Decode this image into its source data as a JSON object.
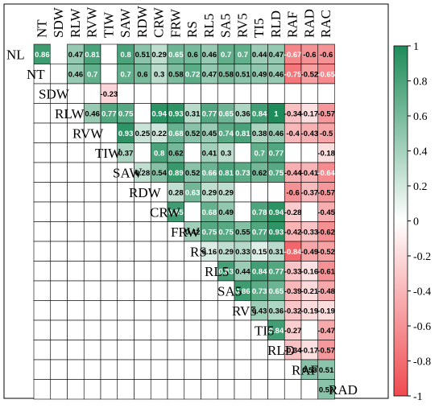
{
  "chart_data": {
    "type": "heatmap",
    "title": "",
    "column_labels": [
      "NT",
      "SDW",
      "RLW",
      "RVW",
      "TIW",
      "SAW",
      "RDW",
      "CRW",
      "FRW",
      "RS",
      "RL5",
      "SA5",
      "RV5",
      "TI5",
      "RLD",
      "RAF",
      "RAD",
      "RAC"
    ],
    "row_labels": [
      "NL",
      "NT",
      "SDW",
      "RLW",
      "RVW",
      "TIW",
      "SAW",
      "RDW",
      "CRW",
      "FRW",
      "RS",
      "RL5",
      "SA5",
      "RV5",
      "TI5",
      "RLD",
      "RAF",
      "RAD"
    ],
    "values": [
      [
        0.86,
        null,
        0.47,
        0.81,
        null,
        0.8,
        0.51,
        0.29,
        0.65,
        0.6,
        0.46,
        0.7,
        0.7,
        0.44,
        0.47,
        -0.67,
        -0.6,
        -0.6
      ],
      [
        null,
        null,
        0.46,
        0.7,
        null,
        0.7,
        0.6,
        0.3,
        0.58,
        0.72,
        0.47,
        0.58,
        0.51,
        0.49,
        0.46,
        -0.75,
        -0.52,
        -0.65
      ],
      [
        null,
        null,
        null,
        null,
        -0.23,
        null,
        null,
        null,
        null,
        null,
        null,
        null,
        null,
        null,
        null,
        null,
        null,
        null
      ],
      [
        null,
        null,
        null,
        0.46,
        0.77,
        0.75,
        null,
        0.94,
        0.93,
        0.31,
        0.77,
        0.65,
        0.36,
        0.84,
        1,
        -0.34,
        -0.17,
        -0.57
      ],
      [
        null,
        null,
        null,
        null,
        null,
        0.93,
        0.25,
        0.22,
        0.68,
        0.52,
        0.45,
        0.74,
        0.81,
        0.38,
        0.46,
        -0.4,
        -0.43,
        -0.5
      ],
      [
        null,
        null,
        null,
        null,
        null,
        0.37,
        null,
        0.8,
        0.62,
        null,
        0.41,
        0.3,
        null,
        0.7,
        0.77,
        null,
        null,
        -0.18
      ],
      [
        null,
        null,
        null,
        null,
        null,
        null,
        0.28,
        0.54,
        0.89,
        0.52,
        0.66,
        0.81,
        0.73,
        0.62,
        0.75,
        -0.44,
        -0.41,
        -0.64
      ],
      [
        null,
        null,
        null,
        null,
        null,
        null,
        null,
        null,
        0.28,
        0.63,
        0.29,
        0.29,
        null,
        null,
        null,
        -0.6,
        -0.37,
        -0.57
      ],
      [
        null,
        null,
        null,
        null,
        null,
        null,
        null,
        null,
        0.85,
        null,
        0.68,
        0.49,
        null,
        0.78,
        0.94,
        -0.28,
        null,
        -0.45
      ],
      [
        null,
        null,
        null,
        null,
        null,
        null,
        null,
        null,
        null,
        0.42,
        0.75,
        0.75,
        0.55,
        0.77,
        0.93,
        -0.42,
        -0.33,
        -0.62
      ],
      [
        null,
        null,
        null,
        null,
        null,
        null,
        null,
        null,
        null,
        null,
        0.16,
        0.29,
        0.33,
        0.15,
        0.31,
        -0.84,
        -0.49,
        -0.52
      ],
      [
        null,
        null,
        null,
        null,
        null,
        null,
        null,
        null,
        null,
        null,
        null,
        0.83,
        0.44,
        0.84,
        0.77,
        -0.33,
        -0.16,
        -0.61
      ],
      [
        null,
        null,
        null,
        null,
        null,
        null,
        null,
        null,
        null,
        null,
        null,
        null,
        0.86,
        0.73,
        0.65,
        -0.39,
        -0.21,
        -0.48
      ],
      [
        null,
        null,
        null,
        null,
        null,
        null,
        null,
        null,
        null,
        null,
        null,
        null,
        null,
        0.43,
        0.36,
        -0.32,
        -0.19,
        -0.19
      ],
      [
        null,
        null,
        null,
        null,
        null,
        null,
        null,
        null,
        null,
        null,
        null,
        null,
        null,
        null,
        0.84,
        -0.27,
        null,
        -0.47
      ],
      [
        null,
        null,
        null,
        null,
        null,
        null,
        null,
        null,
        null,
        null,
        null,
        null,
        null,
        null,
        null,
        -0.34,
        -0.17,
        -0.57
      ],
      [
        null,
        null,
        null,
        null,
        null,
        null,
        null,
        null,
        null,
        null,
        null,
        null,
        null,
        null,
        null,
        null,
        0.53,
        0.51
      ],
      [
        null,
        null,
        null,
        null,
        null,
        null,
        null,
        null,
        null,
        null,
        null,
        null,
        null,
        null,
        null,
        null,
        null,
        0.52
      ]
    ],
    "colorbar": {
      "range": [
        -1,
        1
      ],
      "ticks": [
        "1",
        "0.8",
        "0.6",
        "0.4",
        "0.2",
        "0",
        "-0.2",
        "-0.4",
        "-0.6",
        "-0.8",
        "-1"
      ],
      "colors": {
        "negative": "#ef4a4f",
        "zero": "#ffffff",
        "positive": "#1e8c5a"
      }
    },
    "grid": true
  }
}
